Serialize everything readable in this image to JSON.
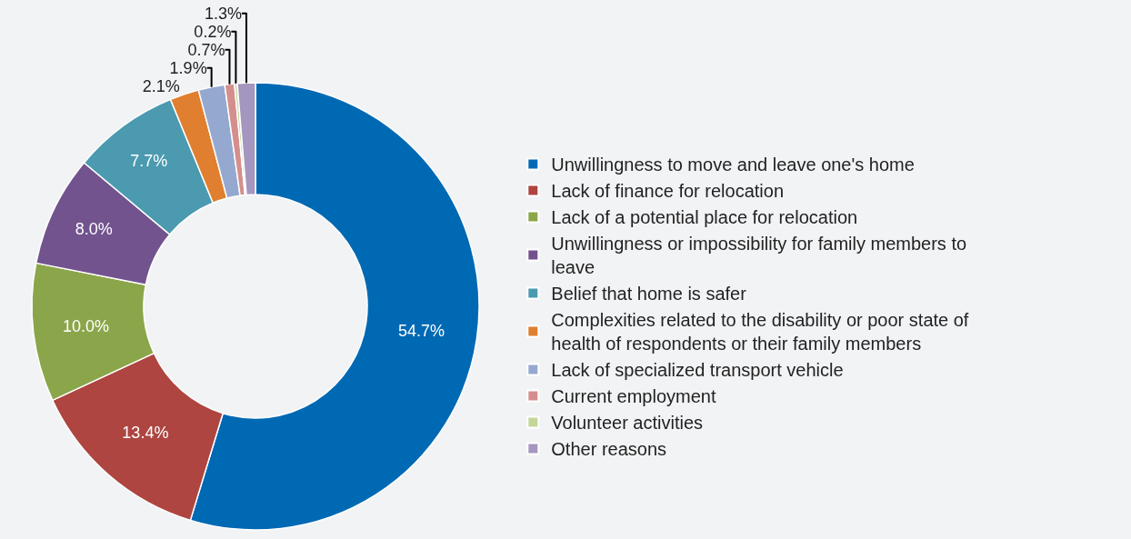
{
  "chart_data": {
    "type": "donut",
    "categories": [
      "Unwillingness to move and leave one's home",
      "Lack of finance for relocation",
      "Lack of a potential place for relocation",
      "Unwillingness or impossibility for family members to leave",
      "Belief that home is safer",
      "Complexities related to the disability or poor state of health of respondents or their family members",
      "Lack of specialized transport vehicle",
      "Current employment",
      "Volunteer activities",
      "Other reasons"
    ],
    "values": [
      54.7,
      13.4,
      10.0,
      8.0,
      7.7,
      2.1,
      1.9,
      0.7,
      0.2,
      1.3
    ],
    "value_labels": [
      "54.7%",
      "13.4%",
      "10.0%",
      "8.0%",
      "7.7%",
      "2.1%",
      "1.9%",
      "0.7%",
      "0.2%",
      "1.3%"
    ],
    "colors": [
      "#0069b4",
      "#ae4540",
      "#8ba64a",
      "#72538e",
      "#4b9ab0",
      "#e07f2f",
      "#95a8d0",
      "#d48f8c",
      "#c3d69b",
      "#a596bf"
    ],
    "legend": "right"
  }
}
